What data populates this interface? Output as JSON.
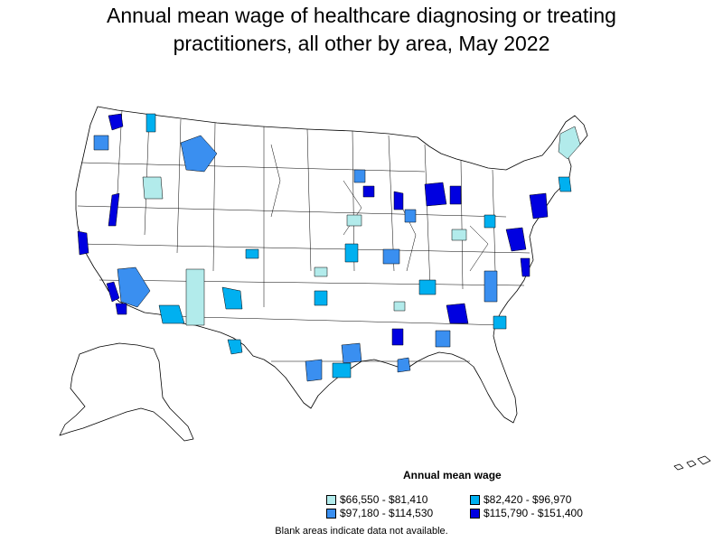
{
  "title": {
    "line1": "Annual mean wage of healthcare diagnosing or treating",
    "line2": "practitioners, all other by area, May 2022"
  },
  "legend": {
    "title": "Annual mean wage",
    "items": [
      {
        "label": "$66,550 - $81,410",
        "color": "#b2ebeb"
      },
      {
        "label": "$82,420 - $96,970",
        "color": "#00b0f0"
      },
      {
        "label": "$97,180 - $114,530",
        "color": "#3a8ff0"
      },
      {
        "label": "$115,790 - $151,400",
        "color": "#0000e0"
      }
    ]
  },
  "note": "Blank areas indicate data not available."
}
